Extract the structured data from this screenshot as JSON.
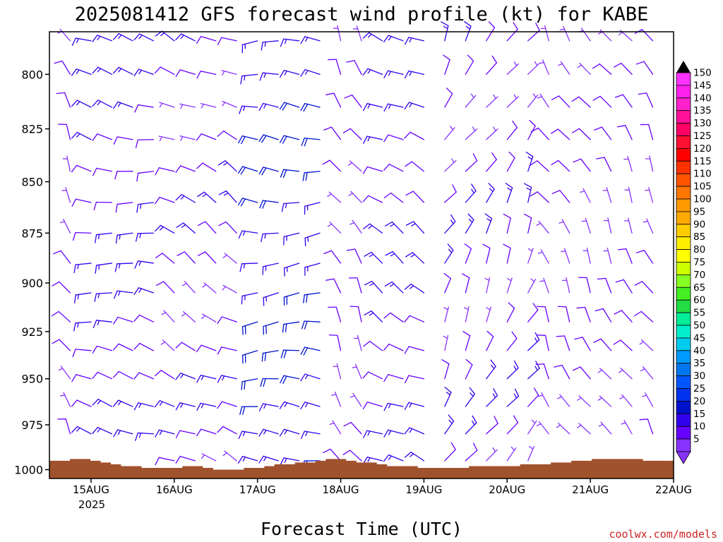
{
  "chart_data": {
    "type": "wind_barb_time_height",
    "title": "2025081412 GFS forecast wind profile (kt) for KABE",
    "xlabel": "Forecast Time (UTC)",
    "ylabel": "",
    "credit": "coolwx.com/models",
    "x_ticks": [
      "15AUG",
      "16AUG",
      "17AUG",
      "18AUG",
      "19AUG",
      "20AUG",
      "21AUG",
      "22AUG"
    ],
    "x_year_label": "2025",
    "xlim_hours": [
      -12,
      168
    ],
    "y_ticks": [
      800,
      825,
      850,
      875,
      900,
      925,
      950,
      975,
      1000
    ],
    "ylim_hpa": [
      781,
      1005
    ],
    "levels_hpa": [
      785,
      800,
      815,
      830,
      845,
      860,
      875,
      890,
      905,
      920,
      935,
      950,
      965,
      980,
      995
    ],
    "time_step_hours": 6,
    "colorbar": {
      "units": "kt",
      "labels": [
        150,
        145,
        140,
        135,
        130,
        125,
        120,
        115,
        110,
        105,
        100,
        95,
        90,
        85,
        80,
        75,
        70,
        65,
        60,
        55,
        50,
        45,
        40,
        35,
        30,
        25,
        20,
        15,
        10,
        5
      ],
      "colors": [
        "#ff33ff",
        "#ff22ee",
        "#ff22cc",
        "#ff1199",
        "#ff0066",
        "#ff1133",
        "#ff0000",
        "#ff3300",
        "#ff5500",
        "#ff7700",
        "#ff9900",
        "#ffaa00",
        "#ffcc00",
        "#ffee00",
        "#ffff00",
        "#ccff00",
        "#88ff22",
        "#44ee22",
        "#22dd44",
        "#00ee99",
        "#00eecc",
        "#00ccee",
        "#0099ff",
        "#0077ee",
        "#0055ff",
        "#0033ee",
        "#0011cc",
        "#3300ee",
        "#6600ff",
        "#8833ff"
      ]
    },
    "terrain_color": "#a0522d",
    "surface_pressure_hpa": [
      995,
      995,
      994,
      994,
      995,
      996,
      997,
      998,
      998,
      999,
      999,
      999,
      999,
      998,
      998,
      999,
      1000,
      1000,
      1000,
      999,
      999,
      998,
      997,
      997,
      996,
      996,
      995,
      994,
      994,
      995,
      996,
      996,
      997,
      998,
      998,
      998,
      999,
      999,
      999,
      999,
      999,
      998,
      998,
      998,
      998,
      998,
      997,
      997,
      997,
      996,
      996,
      995,
      995,
      994,
      994,
      994,
      994,
      994,
      995,
      995,
      995
    ],
    "wind_regimes": [
      {
        "start_hour": -12,
        "end_hour": 0,
        "dir_deg": 330,
        "speed_kt": 10
      },
      {
        "start_hour": 0,
        "end_hour": 24,
        "dir_deg": 280,
        "speed_kt": 15
      },
      {
        "start_hour": 24,
        "end_hour": 48,
        "dir_deg": 300,
        "speed_kt": 12
      },
      {
        "start_hour": 48,
        "end_hour": 72,
        "dir_deg": 270,
        "speed_kt": 20
      },
      {
        "start_hour": 72,
        "end_hour": 84,
        "dir_deg": 330,
        "speed_kt": 10
      },
      {
        "start_hour": 84,
        "end_hour": 102,
        "dir_deg": 300,
        "speed_kt": 15
      },
      {
        "start_hour": 102,
        "end_hour": 132,
        "dir_deg": 30,
        "speed_kt": 12
      },
      {
        "start_hour": 132,
        "end_hour": 168,
        "dir_deg": 330,
        "speed_kt": 10
      }
    ]
  }
}
